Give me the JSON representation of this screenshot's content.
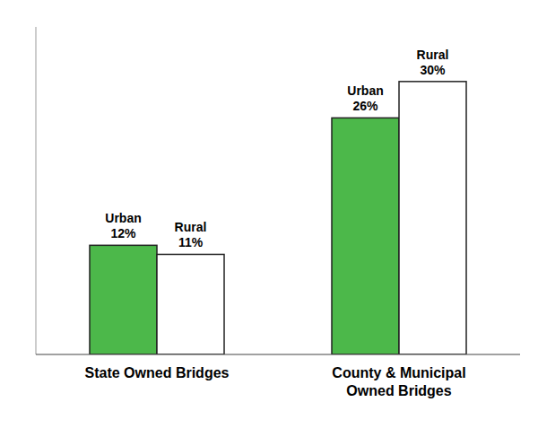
{
  "chart_data": {
    "type": "bar",
    "categories": [
      "State Owned Bridges",
      "County & Municipal\nOwned Bridges"
    ],
    "series": [
      {
        "name": "Urban",
        "color": "#4cb84a",
        "values": [
          12,
          26
        ],
        "value_labels": [
          "12%",
          "26%"
        ]
      },
      {
        "name": "Rural",
        "color": "#ffffff",
        "values": [
          11,
          30
        ],
        "value_labels": [
          "11%",
          "30%"
        ]
      }
    ],
    "ylim": [
      0,
      36
    ],
    "grid": false,
    "data_labels": true,
    "tick_labels": "x"
  }
}
